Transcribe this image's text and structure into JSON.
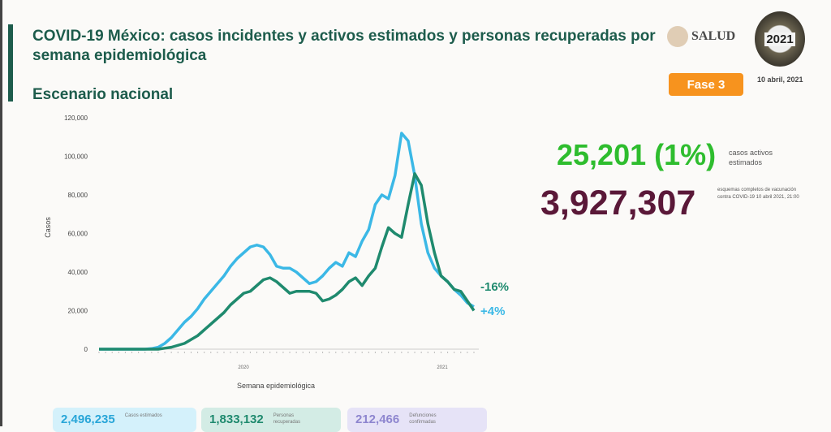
{
  "header": {
    "title": "COVID-19 México: casos incidentes y activos estimados y personas recuperadas por semana epidemiológica",
    "subtitle": "Escenario nacional",
    "logo_text": "SALUD",
    "badge": "Fase 3",
    "date": "10 abril, 2021",
    "logo2021": "2021"
  },
  "stats": {
    "active_value": "25,201 (1%)",
    "active_label": "casos activos estimados",
    "vacc_value": "3,927,307",
    "vacc_label": "esquemas completos de vacunación contra COVID-19 10 abril 2021, 21:00"
  },
  "boxes": [
    {
      "value": "2,496,235",
      "label": "Casos estimados"
    },
    {
      "value": "1,833,132",
      "label": "Personas recuperadas"
    },
    {
      "value": "212,466",
      "label": "Defunciones confirmadas"
    }
  ],
  "colors": {
    "series1": "#3bb8e6",
    "series2": "#1f8a6e",
    "active": "#2ebd2e",
    "vacc": "#5a1838",
    "badge": "#f7931e"
  },
  "chart_data": {
    "type": "line",
    "title": "",
    "xlabel": "Semana epidemiológica",
    "ylabel": "Casos",
    "ylim": [
      0,
      120000
    ],
    "yticks": [
      "0",
      "20,000",
      "40,000",
      "60,000",
      "80,000",
      "100,000",
      "120,000"
    ],
    "year_labels": [
      "2020",
      "2021"
    ],
    "grid": false,
    "series": [
      {
        "color": "#3bb8e6",
        "values": [
          0,
          0,
          0,
          0,
          0,
          0,
          0,
          0,
          300,
          1000,
          3000,
          6000,
          10000,
          14000,
          17000,
          21000,
          26000,
          30000,
          34000,
          38000,
          43000,
          47000,
          50000,
          53000,
          54000,
          53000,
          49000,
          43000,
          42000,
          42000,
          40000,
          37000,
          34000,
          35000,
          38000,
          42000,
          45000,
          43000,
          50000,
          48000,
          56000,
          62000,
          75000,
          80000,
          78000,
          90000,
          112000,
          108000,
          90000,
          65000,
          50000,
          42000,
          38000,
          35000,
          31000,
          28000,
          24000,
          22000
        ]
      },
      {
        "color": "#1f8a6e",
        "values": [
          0,
          0,
          0,
          0,
          0,
          0,
          0,
          0,
          0,
          0,
          500,
          1000,
          2000,
          3000,
          5000,
          7000,
          10000,
          13000,
          16000,
          19000,
          23000,
          26000,
          29000,
          30000,
          33000,
          36000,
          37000,
          35000,
          32000,
          29000,
          30000,
          30000,
          30000,
          29000,
          25000,
          26000,
          28000,
          31000,
          35000,
          37000,
          33000,
          38000,
          42000,
          53000,
          63000,
          60000,
          58000,
          75000,
          91000,
          85000,
          65000,
          50000,
          38000,
          35000,
          31000,
          30000,
          25000,
          20000
        ]
      }
    ],
    "annotations": [
      {
        "text": "-16%",
        "color": "#1f8a6e"
      },
      {
        "text": "+4%",
        "color": "#3bb8e6"
      }
    ]
  }
}
